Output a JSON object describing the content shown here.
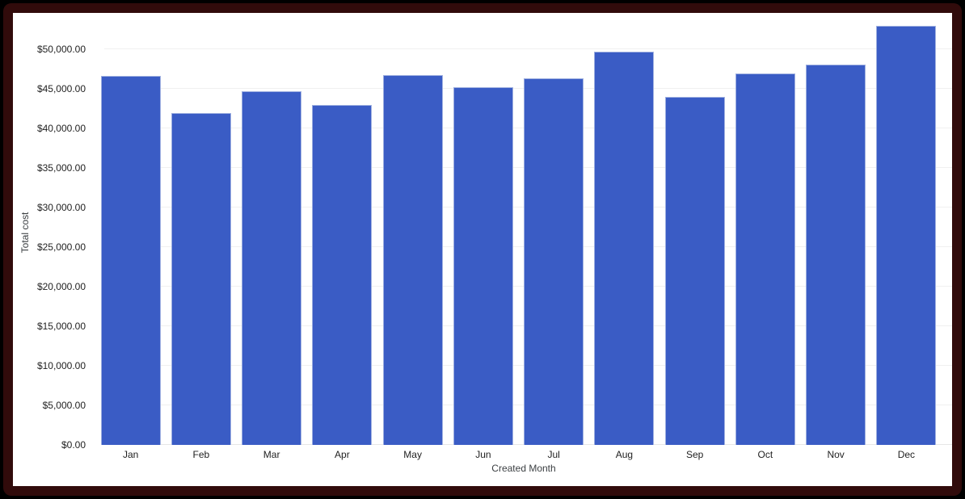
{
  "frame": {
    "page_background": "#000000",
    "border_color": "#310b0b",
    "card_background": "#ffffff"
  },
  "chart_data": {
    "type": "bar",
    "title": "",
    "xlabel": "Created Month",
    "ylabel": "Total cost",
    "categories": [
      "Jan",
      "Feb",
      "Mar",
      "Apr",
      "May",
      "Jun",
      "Jul",
      "Aug",
      "Sep",
      "Oct",
      "Nov",
      "Dec"
    ],
    "values": [
      46700,
      42000,
      44700,
      43000,
      46800,
      45200,
      46400,
      49700,
      44000,
      47000,
      48100,
      53000
    ],
    "ylim": [
      0,
      53700
    ],
    "yticks": [
      {
        "value": 0,
        "label": "$0.00"
      },
      {
        "value": 5000,
        "label": "$5,000.00"
      },
      {
        "value": 10000,
        "label": "$10,000.00"
      },
      {
        "value": 15000,
        "label": "$15,000.00"
      },
      {
        "value": 20000,
        "label": "$20,000.00"
      },
      {
        "value": 25000,
        "label": "$25,000.00"
      },
      {
        "value": 30000,
        "label": "$30,000.00"
      },
      {
        "value": 35000,
        "label": "$35,000.00"
      },
      {
        "value": 40000,
        "label": "$40,000.00"
      },
      {
        "value": 45000,
        "label": "$45,000.00"
      },
      {
        "value": 50000,
        "label": "$50,000.00"
      }
    ],
    "grid": true,
    "legend": "none",
    "bar_color": "#3a5cc5",
    "bar_border_color": "#9fb0e0",
    "gridline_color": "#f0f0f0",
    "baseline_color": "#e6e6e6"
  }
}
